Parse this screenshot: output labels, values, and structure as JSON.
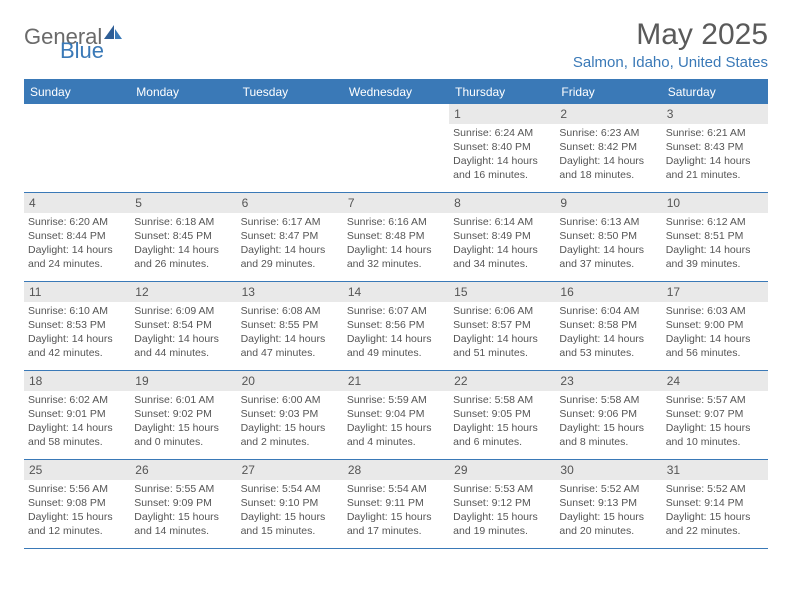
{
  "logo": {
    "text1": "General",
    "text2": "Blue"
  },
  "title": "May 2025",
  "location": "Salmon, Idaho, United States",
  "colors": {
    "brand": "#3a79b7",
    "text": "#555555",
    "daybg": "#e9e9e9",
    "logo_gray": "#6a6a6a"
  },
  "dow": [
    "Sunday",
    "Monday",
    "Tuesday",
    "Wednesday",
    "Thursday",
    "Friday",
    "Saturday"
  ],
  "weeks": [
    [
      null,
      null,
      null,
      null,
      {
        "d": "1",
        "sr": "6:24 AM",
        "ss": "8:40 PM",
        "dh": "14",
        "dm": "16"
      },
      {
        "d": "2",
        "sr": "6:23 AM",
        "ss": "8:42 PM",
        "dh": "14",
        "dm": "18"
      },
      {
        "d": "3",
        "sr": "6:21 AM",
        "ss": "8:43 PM",
        "dh": "14",
        "dm": "21"
      }
    ],
    [
      {
        "d": "4",
        "sr": "6:20 AM",
        "ss": "8:44 PM",
        "dh": "14",
        "dm": "24"
      },
      {
        "d": "5",
        "sr": "6:18 AM",
        "ss": "8:45 PM",
        "dh": "14",
        "dm": "26"
      },
      {
        "d": "6",
        "sr": "6:17 AM",
        "ss": "8:47 PM",
        "dh": "14",
        "dm": "29"
      },
      {
        "d": "7",
        "sr": "6:16 AM",
        "ss": "8:48 PM",
        "dh": "14",
        "dm": "32"
      },
      {
        "d": "8",
        "sr": "6:14 AM",
        "ss": "8:49 PM",
        "dh": "14",
        "dm": "34"
      },
      {
        "d": "9",
        "sr": "6:13 AM",
        "ss": "8:50 PM",
        "dh": "14",
        "dm": "37"
      },
      {
        "d": "10",
        "sr": "6:12 AM",
        "ss": "8:51 PM",
        "dh": "14",
        "dm": "39"
      }
    ],
    [
      {
        "d": "11",
        "sr": "6:10 AM",
        "ss": "8:53 PM",
        "dh": "14",
        "dm": "42"
      },
      {
        "d": "12",
        "sr": "6:09 AM",
        "ss": "8:54 PM",
        "dh": "14",
        "dm": "44"
      },
      {
        "d": "13",
        "sr": "6:08 AM",
        "ss": "8:55 PM",
        "dh": "14",
        "dm": "47"
      },
      {
        "d": "14",
        "sr": "6:07 AM",
        "ss": "8:56 PM",
        "dh": "14",
        "dm": "49"
      },
      {
        "d": "15",
        "sr": "6:06 AM",
        "ss": "8:57 PM",
        "dh": "14",
        "dm": "51"
      },
      {
        "d": "16",
        "sr": "6:04 AM",
        "ss": "8:58 PM",
        "dh": "14",
        "dm": "53"
      },
      {
        "d": "17",
        "sr": "6:03 AM",
        "ss": "9:00 PM",
        "dh": "14",
        "dm": "56"
      }
    ],
    [
      {
        "d": "18",
        "sr": "6:02 AM",
        "ss": "9:01 PM",
        "dh": "14",
        "dm": "58"
      },
      {
        "d": "19",
        "sr": "6:01 AM",
        "ss": "9:02 PM",
        "dh": "15",
        "dm": "0"
      },
      {
        "d": "20",
        "sr": "6:00 AM",
        "ss": "9:03 PM",
        "dh": "15",
        "dm": "2"
      },
      {
        "d": "21",
        "sr": "5:59 AM",
        "ss": "9:04 PM",
        "dh": "15",
        "dm": "4"
      },
      {
        "d": "22",
        "sr": "5:58 AM",
        "ss": "9:05 PM",
        "dh": "15",
        "dm": "6"
      },
      {
        "d": "23",
        "sr": "5:58 AM",
        "ss": "9:06 PM",
        "dh": "15",
        "dm": "8"
      },
      {
        "d": "24",
        "sr": "5:57 AM",
        "ss": "9:07 PM",
        "dh": "15",
        "dm": "10"
      }
    ],
    [
      {
        "d": "25",
        "sr": "5:56 AM",
        "ss": "9:08 PM",
        "dh": "15",
        "dm": "12"
      },
      {
        "d": "26",
        "sr": "5:55 AM",
        "ss": "9:09 PM",
        "dh": "15",
        "dm": "14"
      },
      {
        "d": "27",
        "sr": "5:54 AM",
        "ss": "9:10 PM",
        "dh": "15",
        "dm": "15"
      },
      {
        "d": "28",
        "sr": "5:54 AM",
        "ss": "9:11 PM",
        "dh": "15",
        "dm": "17"
      },
      {
        "d": "29",
        "sr": "5:53 AM",
        "ss": "9:12 PM",
        "dh": "15",
        "dm": "19"
      },
      {
        "d": "30",
        "sr": "5:52 AM",
        "ss": "9:13 PM",
        "dh": "15",
        "dm": "20"
      },
      {
        "d": "31",
        "sr": "5:52 AM",
        "ss": "9:14 PM",
        "dh": "15",
        "dm": "22"
      }
    ]
  ]
}
